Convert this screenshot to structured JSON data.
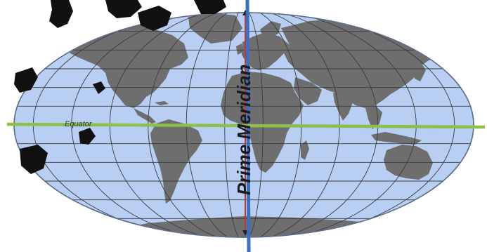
{
  "map": {
    "title": "",
    "prime_meridian_label": "Prime Meridian",
    "equator_label": "Equator",
    "projection": "Robinson-like oval world map",
    "colors": {
      "ocean": "#b8cff3",
      "land": "#6e6e6e",
      "graticule": "#3a3a3a",
      "prime_meridian_line": "#3a6fc4",
      "prime_meridian_inner": "#c0392b",
      "equator_line": "#8dc04a",
      "page_background": "#ffffff",
      "decoration": "#111111"
    },
    "icons": {
      "meridian_arrow": "arrow-icon",
      "decorations": "dark-curl-decoration-icon"
    }
  }
}
